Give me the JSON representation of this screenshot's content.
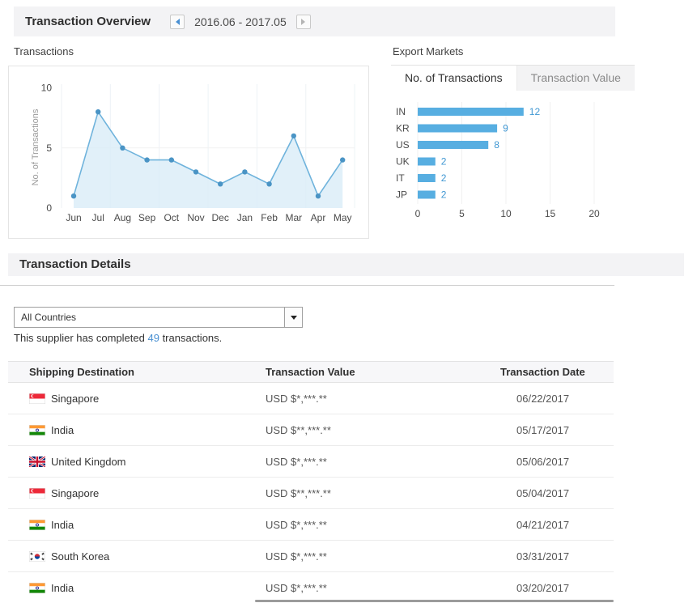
{
  "header": {
    "title": "Transaction Overview",
    "date_range": "2016.06 - 2017.05"
  },
  "export_markets": {
    "label": "Export Markets",
    "tabs": [
      "No. of Transactions",
      "Transaction Value"
    ],
    "active_tab": "No. of Transactions"
  },
  "chart_data": [
    {
      "type": "area",
      "title": "Transactions",
      "x": [
        "Jun",
        "Jul",
        "Aug",
        "Sep",
        "Oct",
        "Nov",
        "Dec",
        "Jan",
        "Feb",
        "Mar",
        "Apr",
        "May"
      ],
      "values": [
        1,
        8,
        5,
        4,
        4,
        3,
        2,
        3,
        2,
        6,
        1,
        4
      ],
      "ylabel": "No. of Transactions",
      "yticks": [
        0,
        5,
        10
      ],
      "ylim": [
        0,
        10
      ],
      "grid": true,
      "legend": "none",
      "line_color": "#6fb3dc",
      "fill_color": "#daecf7",
      "point_color": "#4a94c5"
    },
    {
      "type": "bar",
      "orientation": "horizontal",
      "title": "Export Markets - No. of Transactions",
      "categories": [
        "IN",
        "KR",
        "US",
        "UK",
        "IT",
        "JP"
      ],
      "values": [
        12,
        9,
        8,
        2,
        2,
        2
      ],
      "xticks": [
        0,
        5,
        10,
        15,
        20
      ],
      "xlim": [
        0,
        22
      ],
      "grid": true,
      "legend": "none",
      "bar_color": "#57aee1",
      "label_color": "#4198d3"
    }
  ],
  "details": {
    "section_title": "Transaction Details",
    "country_filter_value": "All Countries",
    "summary_prefix": "This supplier has completed ",
    "summary_count": "49",
    "summary_suffix": " transactions.",
    "table": {
      "columns": [
        "Shipping Destination",
        "Transaction Value",
        "Transaction Date"
      ],
      "rows": [
        {
          "country": "Singapore",
          "flag": "sg",
          "value": "USD $*,***.**",
          "date": "06/22/2017"
        },
        {
          "country": "India",
          "flag": "in",
          "value": "USD $**,***.**",
          "date": "05/17/2017"
        },
        {
          "country": "United Kingdom",
          "flag": "gb",
          "value": "USD $*,***.**",
          "date": "05/06/2017"
        },
        {
          "country": "Singapore",
          "flag": "sg",
          "value": "USD $**,***.**",
          "date": "05/04/2017"
        },
        {
          "country": "India",
          "flag": "in",
          "value": "USD $*,***.**",
          "date": "04/21/2017"
        },
        {
          "country": "South Korea",
          "flag": "kr",
          "value": "USD $*,***.**",
          "date": "03/31/2017"
        },
        {
          "country": "India",
          "flag": "in",
          "value": "USD $*,***.**",
          "date": "03/20/2017"
        }
      ]
    }
  },
  "colors": {
    "accent_blue": "#4a90d2",
    "bar_blue": "#57aee1",
    "header_bar_bg": "#f3f3f5",
    "link_blue": "#4a90d2"
  }
}
